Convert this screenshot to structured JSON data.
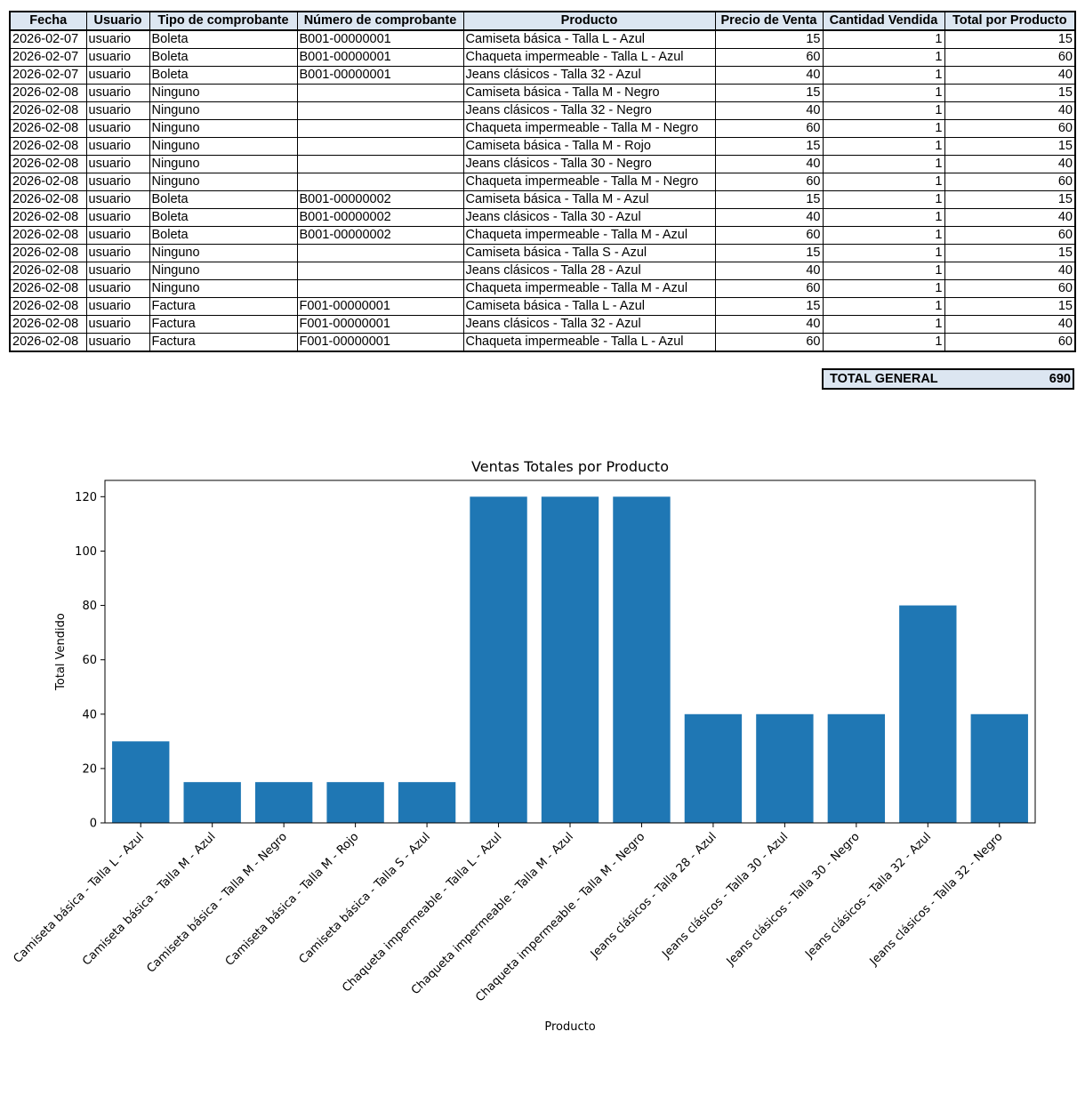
{
  "table": {
    "headers": [
      "Fecha",
      "Usuario",
      "Tipo de comprobante",
      "Número de comprobante",
      "Producto",
      "Precio de Venta",
      "Cantidad Vendida",
      "Total por Producto"
    ],
    "rows": [
      [
        "2026-02-07",
        "usuario",
        "Boleta",
        "B001-00000001",
        "Camiseta básica - Talla L - Azul",
        "15",
        "1",
        "15"
      ],
      [
        "2026-02-07",
        "usuario",
        "Boleta",
        "B001-00000001",
        "Chaqueta impermeable - Talla L - Azul",
        "60",
        "1",
        "60"
      ],
      [
        "2026-02-07",
        "usuario",
        "Boleta",
        "B001-00000001",
        "Jeans clásicos - Talla 32 - Azul",
        "40",
        "1",
        "40"
      ],
      [
        "2026-02-08",
        "usuario",
        "Ninguno",
        "",
        "Camiseta básica - Talla M - Negro",
        "15",
        "1",
        "15"
      ],
      [
        "2026-02-08",
        "usuario",
        "Ninguno",
        "",
        "Jeans clásicos - Talla 32 - Negro",
        "40",
        "1",
        "40"
      ],
      [
        "2026-02-08",
        "usuario",
        "Ninguno",
        "",
        "Chaqueta impermeable - Talla M - Negro",
        "60",
        "1",
        "60"
      ],
      [
        "2026-02-08",
        "usuario",
        "Ninguno",
        "",
        "Camiseta básica - Talla M - Rojo",
        "15",
        "1",
        "15"
      ],
      [
        "2026-02-08",
        "usuario",
        "Ninguno",
        "",
        "Jeans clásicos - Talla 30 - Negro",
        "40",
        "1",
        "40"
      ],
      [
        "2026-02-08",
        "usuario",
        "Ninguno",
        "",
        "Chaqueta impermeable - Talla M - Negro",
        "60",
        "1",
        "60"
      ],
      [
        "2026-02-08",
        "usuario",
        "Boleta",
        "B001-00000002",
        "Camiseta básica - Talla M - Azul",
        "15",
        "1",
        "15"
      ],
      [
        "2026-02-08",
        "usuario",
        "Boleta",
        "B001-00000002",
        "Jeans clásicos - Talla 30 - Azul",
        "40",
        "1",
        "40"
      ],
      [
        "2026-02-08",
        "usuario",
        "Boleta",
        "B001-00000002",
        "Chaqueta impermeable - Talla M - Azul",
        "60",
        "1",
        "60"
      ],
      [
        "2026-02-08",
        "usuario",
        "Ninguno",
        "",
        "Camiseta básica - Talla S - Azul",
        "15",
        "1",
        "15"
      ],
      [
        "2026-02-08",
        "usuario",
        "Ninguno",
        "",
        "Jeans clásicos - Talla 28 - Azul",
        "40",
        "1",
        "40"
      ],
      [
        "2026-02-08",
        "usuario",
        "Ninguno",
        "",
        "Chaqueta impermeable - Talla M - Azul",
        "60",
        "1",
        "60"
      ],
      [
        "2026-02-08",
        "usuario",
        "Factura",
        "F001-00000001",
        "Camiseta básica - Talla L - Azul",
        "15",
        "1",
        "15"
      ],
      [
        "2026-02-08",
        "usuario",
        "Factura",
        "F001-00000001",
        "Jeans clásicos - Talla 32 - Azul",
        "40",
        "1",
        "40"
      ],
      [
        "2026-02-08",
        "usuario",
        "Factura",
        "F001-00000001",
        "Chaqueta impermeable - Talla L - Azul",
        "60",
        "1",
        "60"
      ]
    ]
  },
  "total_general": {
    "label": "TOTAL GENERAL",
    "value": "690"
  },
  "chart_data": {
    "type": "bar",
    "title": "Ventas Totales por Producto",
    "xlabel": "Producto",
    "ylabel": "Total Vendido",
    "categories": [
      "Camiseta básica - Talla L - Azul",
      "Camiseta básica - Talla M - Azul",
      "Camiseta básica - Talla M - Negro",
      "Camiseta básica - Talla M - Rojo",
      "Camiseta básica - Talla S - Azul",
      "Chaqueta impermeable - Talla L - Azul",
      "Chaqueta impermeable - Talla M - Azul",
      "Chaqueta impermeable - Talla M - Negro",
      "Jeans clásicos - Talla 28 - Azul",
      "Jeans clásicos - Talla 30 - Azul",
      "Jeans clásicos - Talla 30 - Negro",
      "Jeans clásicos - Talla 32 - Azul",
      "Jeans clásicos - Talla 32 - Negro"
    ],
    "values": [
      30,
      15,
      15,
      15,
      15,
      120,
      120,
      120,
      40,
      40,
      40,
      80,
      40
    ],
    "yticks": [
      0,
      20,
      40,
      60,
      80,
      100,
      120
    ],
    "ylim": [
      0,
      126
    ],
    "bar_color": "#1f77b4"
  }
}
